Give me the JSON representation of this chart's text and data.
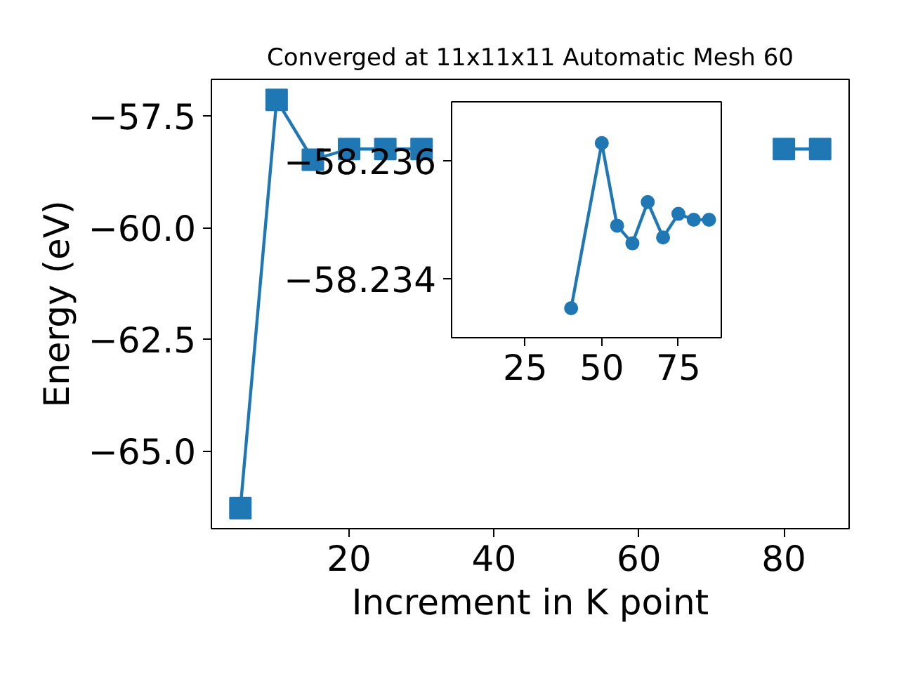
{
  "chart_data": [
    {
      "type": "line",
      "title": "Converged at 11x11x11 Automatic Mesh 60",
      "xlabel": "Increment in K point",
      "ylabel": "Energy (eV)",
      "marker": "square",
      "grid": false,
      "xlim": [
        1,
        89
      ],
      "ylim": [
        -66.74,
        -56.68
      ],
      "xticks": [
        20,
        40,
        60,
        80
      ],
      "yticks": [
        {
          "value": -65.0,
          "label": "−65.0"
        },
        {
          "value": -62.5,
          "label": "−62.5"
        },
        {
          "value": -60.0,
          "label": "−60.0"
        },
        {
          "value": -57.5,
          "label": "−57.5"
        }
      ],
      "x": [
        5,
        10,
        15,
        20,
        25,
        30,
        35,
        40,
        50,
        55,
        60,
        65,
        70,
        75,
        80,
        85
      ],
      "series": [
        {
          "color": "#1f77b4",
          "values": [
            -66.28,
            -57.14,
            -58.48,
            -58.24,
            -58.24,
            -58.24,
            null,
            null,
            null,
            null,
            null,
            null,
            null,
            null,
            -58.24,
            -58.24
          ]
        }
      ]
    },
    {
      "type": "line",
      "marker": "circle",
      "grid": false,
      "xlim": [
        1,
        89
      ],
      "ylim": [
        -58.233,
        -58.237
      ],
      "xticks": [
        25,
        50,
        75
      ],
      "yticks": [
        {
          "value": -58.236,
          "label": "−58.236"
        },
        {
          "value": -58.234,
          "label": "−58.234"
        }
      ],
      "x": [
        40,
        50,
        55,
        60,
        65,
        70,
        75,
        80,
        85
      ],
      "series": [
        {
          "color": "#1f77b4",
          "values": [
            -58.2335,
            -58.2363,
            -58.2349,
            -58.2346,
            -58.2353,
            -58.2347,
            -58.2351,
            -58.235,
            -58.235
          ]
        }
      ]
    }
  ]
}
